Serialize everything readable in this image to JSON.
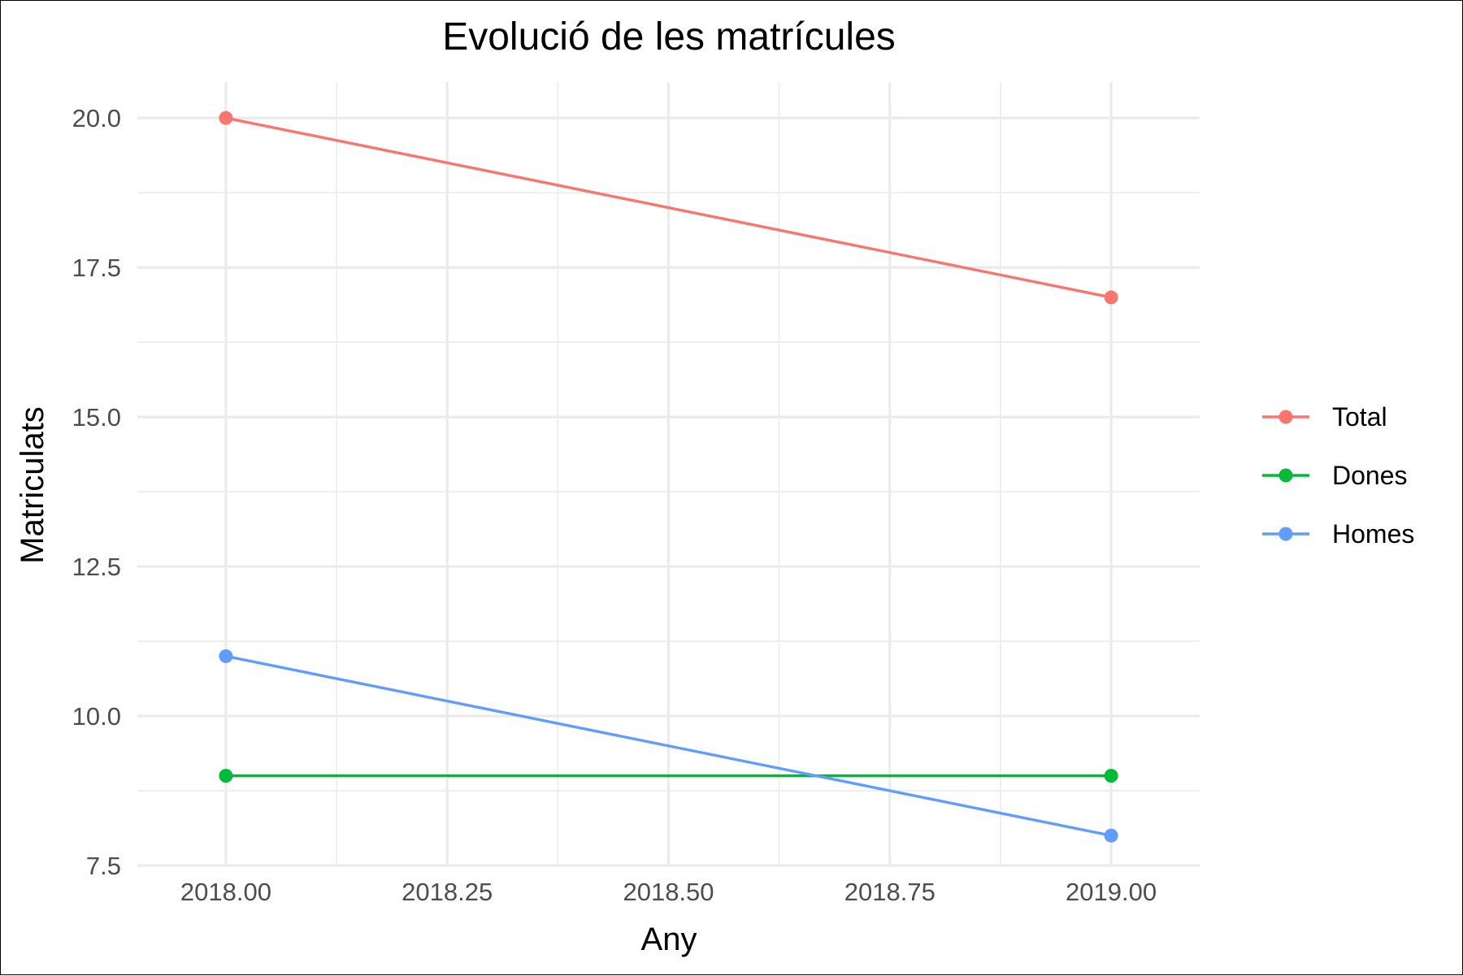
{
  "chart_data": {
    "type": "line",
    "title": "Evolució de les matrícules",
    "xlabel": "Any",
    "ylabel": "Matriculats",
    "x": [
      2018,
      2019
    ],
    "xlim": [
      2017.9,
      2019.1
    ],
    "ylim": [
      7.5,
      20.6
    ],
    "x_ticks": [
      2018.0,
      2018.25,
      2018.5,
      2018.75,
      2019.0
    ],
    "x_tick_labels": [
      "2018.00",
      "2018.25",
      "2018.50",
      "2018.75",
      "2019.00"
    ],
    "x_minor_ticks": [
      2018.125,
      2018.375,
      2018.625,
      2018.875
    ],
    "y_ticks": [
      7.5,
      10.0,
      12.5,
      15.0,
      17.5,
      20.0
    ],
    "y_tick_labels": [
      "7.5",
      "10.0",
      "12.5",
      "15.0",
      "17.5",
      "20.0"
    ],
    "y_minor_ticks": [
      8.75,
      11.25,
      13.75,
      16.25,
      18.75
    ],
    "grid": true,
    "legend_position": "right",
    "series": [
      {
        "name": "Total",
        "color": "#F8766D",
        "values": [
          20,
          17
        ]
      },
      {
        "name": "Dones",
        "color": "#00BA38",
        "values": [
          9,
          9
        ]
      },
      {
        "name": "Homes",
        "color": "#619CFF",
        "values": [
          11,
          8
        ]
      }
    ]
  }
}
